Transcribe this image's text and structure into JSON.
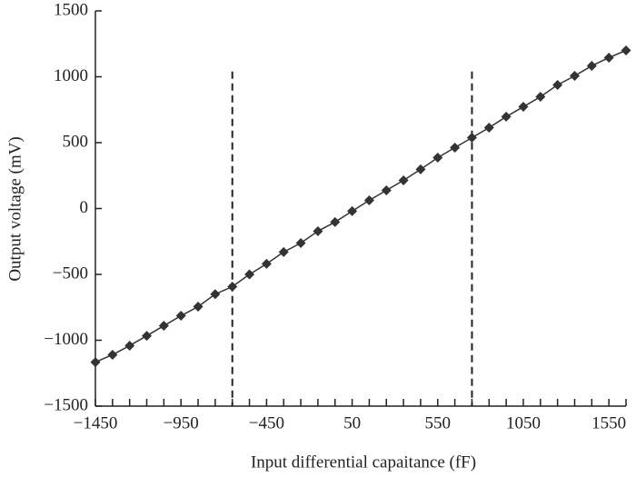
{
  "chart_data": {
    "type": "line",
    "x_label": "Input differential capaitance (fF)",
    "y_label": "Output voltage (mV)",
    "x": [
      -1450,
      -1350,
      -1250,
      -1150,
      -1050,
      -950,
      -850,
      -750,
      -650,
      -550,
      -450,
      -350,
      -250,
      -150,
      -50,
      50,
      150,
      250,
      350,
      450,
      550,
      650,
      750,
      850,
      950,
      1050,
      1150,
      1250,
      1350,
      1450,
      1550,
      1650
    ],
    "series": [
      {
        "name": "Output voltage",
        "color": "#333333",
        "values": [
          -1166,
          -1110,
          -1041,
          -966,
          -890,
          -814,
          -745,
          -650,
          -593,
          -500,
          -420,
          -330,
          -262,
          -172,
          -103,
          -20,
          62,
          138,
          214,
          297,
          386,
          462,
          538,
          614,
          697,
          772,
          848,
          938,
          1007,
          1083,
          1145,
          1200
        ]
      }
    ],
    "xlim": [
      -1450,
      1650
    ],
    "ylim": [
      -1500,
      1500
    ],
    "xticks": [
      {
        "value": -1450,
        "label": "−1450"
      },
      {
        "value": -950,
        "label": "−950"
      },
      {
        "value": -450,
        "label": "−450"
      },
      50,
      550,
      1050,
      1550
    ],
    "xminor_ticks": [
      -1350,
      -1250,
      -1150,
      -1050,
      -850,
      -750,
      -650,
      -550,
      -350,
      -250,
      -150,
      -50,
      150,
      250,
      350,
      450,
      650,
      750,
      850,
      950,
      1150,
      1250,
      1350,
      1450,
      1650
    ],
    "yticks": [
      {
        "value": -1500,
        "label": "−1500"
      },
      {
        "value": -1000,
        "label": "−1000"
      },
      {
        "value": -500,
        "label": "−500"
      },
      0,
      500,
      1000,
      1500
    ],
    "vertical_lines": [
      {
        "x": -650,
        "y_top": 1040
      },
      {
        "x": 750,
        "y_top": 1040
      }
    ]
  }
}
